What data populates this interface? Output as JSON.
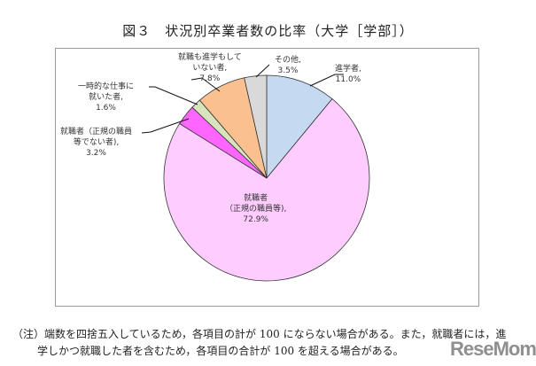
{
  "title": "図３　状況別卒業者数の比率（大学［学部］）",
  "chart_data": {
    "type": "pie",
    "title": "図３　状況別卒業者数の比率（大学［学部］）",
    "start_angle": "12 o'clock",
    "direction": "clockwise",
    "slices": [
      {
        "label": "進学者",
        "value": 11.0,
        "display": "11.0%",
        "color": "#c5d9f1"
      },
      {
        "label": "就職者（正規の職員等）",
        "value": 72.9,
        "display": "72.9%",
        "color": "#ffccff"
      },
      {
        "label": "就職者（正規の職員等でない者）",
        "value": 3.2,
        "display": "3.2%",
        "color": "#ff66ff"
      },
      {
        "label": "一時的な仕事に就いた者",
        "value": 1.6,
        "display": "1.6%",
        "color": "#d8e4bc"
      },
      {
        "label": "就職も進学もしていない者",
        "value": 7.8,
        "display": "7.8%",
        "color": "#fac090"
      },
      {
        "label": "その他",
        "value": 3.5,
        "display": "3.5%",
        "color": "#d9d9d9"
      }
    ]
  },
  "labels": {
    "shingaku": {
      "line1": "進学者,",
      "line2": "11.0%"
    },
    "seiki": {
      "line1": "就職者",
      "line2": "（正規の職員等),",
      "line3": "72.9%"
    },
    "hiseiki": {
      "line1": "就職者（正規の職員",
      "line2": "等でない者),",
      "line3": "3.2%"
    },
    "ichiji": {
      "line1": "一時的な仕事に",
      "line2": "就いた者,",
      "line3": "1.6%"
    },
    "mushoku": {
      "line1": "就職も進学もして",
      "line2": "いない者,",
      "line3": "7.8%"
    },
    "sonota": {
      "line1": "その他,",
      "line2": "3.5%"
    }
  },
  "note": {
    "line1": "（注）端数を四捨五入しているため，各項目の計が 100 にならない場合がある。また，就職者には，進",
    "line2": "学しかつ就職した者を含むため，各項目の合計が 100 を超える場合がある。"
  },
  "watermark": "ReseMom"
}
